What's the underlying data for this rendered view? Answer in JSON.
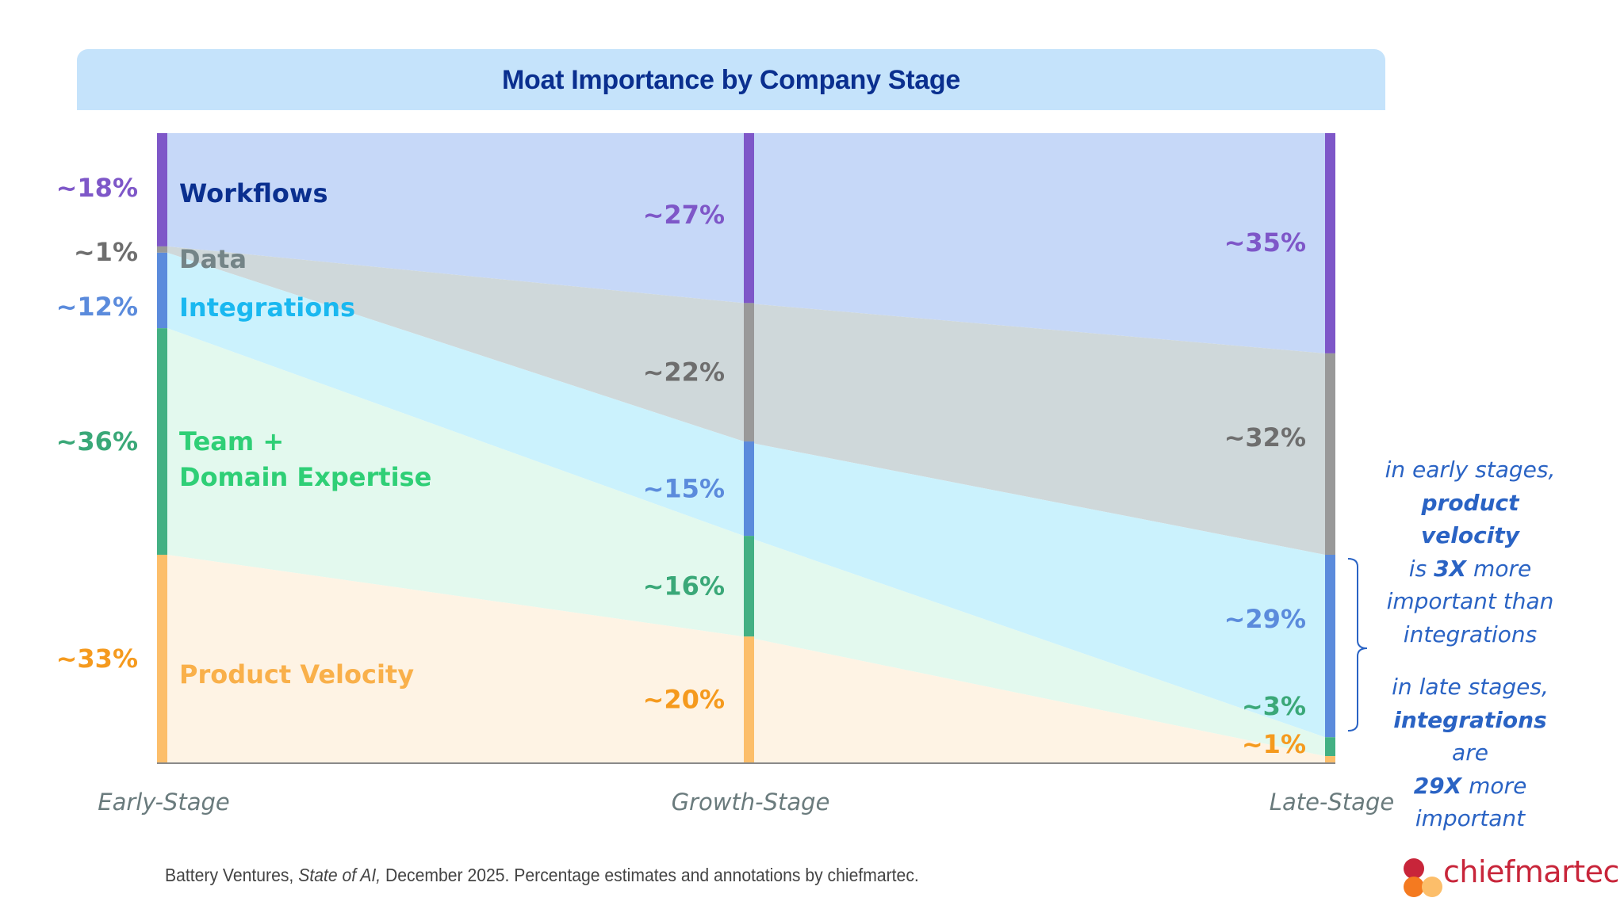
{
  "chart_data": {
    "type": "area",
    "subtype": "stacked-100-flow",
    "title": "Moat Importance by Company Stage",
    "categories": [
      "Early-Stage",
      "Growth-Stage",
      "Late-Stage"
    ],
    "ylim": [
      0,
      100
    ],
    "grid": false,
    "legend": "inline-left",
    "series": [
      {
        "name": "Workflows",
        "values": [
          18,
          27,
          35
        ],
        "labels": [
          "~18%",
          "~27%",
          "~35%"
        ],
        "bar_color": "#7e57c8",
        "fill_color": "#c6d8f8",
        "label_color": "#7e57c8",
        "name_color": "#0a2f8f"
      },
      {
        "name": "Data",
        "values": [
          1,
          22,
          32
        ],
        "labels": [
          "~1%",
          "~22%",
          "~32%"
        ],
        "bar_color": "#999999",
        "fill_color": "#cfd8da",
        "label_color": "#6e6e6e",
        "name_color": "#748487"
      },
      {
        "name": "Integrations",
        "values": [
          12,
          15,
          29
        ],
        "labels": [
          "~12%",
          "~15%",
          "~29%"
        ],
        "bar_color": "#5b8bdc",
        "fill_color": "#cbf2fd",
        "label_color": "#5b8bdc",
        "name_color": "#1ab8f0"
      },
      {
        "name": "Team + Domain Expertise",
        "name_lines": [
          "Team +",
          "Domain Expertise"
        ],
        "values": [
          36,
          16,
          3
        ],
        "labels": [
          "~36%",
          "~16%",
          "~3%"
        ],
        "bar_color": "#43b083",
        "fill_color": "#e3f9ee",
        "label_color": "#3aa878",
        "name_color": "#2fcf76"
      },
      {
        "name": "Product Velocity",
        "values": [
          33,
          20,
          1
        ],
        "labels": [
          "~33%",
          "~20%",
          "~1%"
        ],
        "bar_color": "#fcbe6a",
        "fill_color": "#fef3e4",
        "label_color": "#f59a1e",
        "name_color": "#f9b04a"
      }
    ],
    "annotations": [
      {
        "target": "Late-Stage Integrations",
        "type": "bracket",
        "color": "#2a63c4"
      }
    ]
  },
  "annotation": {
    "block1": {
      "l1": "in early stages,",
      "l2": "product velocity",
      "l3a": "is ",
      "l3b": "3X",
      "l3c": " more",
      "l4": "important than",
      "l5": "integrations"
    },
    "block2": {
      "l1": "in late stages,",
      "l2a": "integrations",
      "l2b": " are",
      "l3a": "29X",
      "l3b": " more",
      "l4": "important"
    }
  },
  "footer": {
    "source": "Battery Ventures, ",
    "source_title": "State of AI,",
    "rest": " December 2025. Percentage estimates and annotations by chiefmartec."
  },
  "logo": {
    "text": "chiefmartec",
    "colors": [
      "#c8253a",
      "#f47a20",
      "#fcbe6a"
    ]
  }
}
